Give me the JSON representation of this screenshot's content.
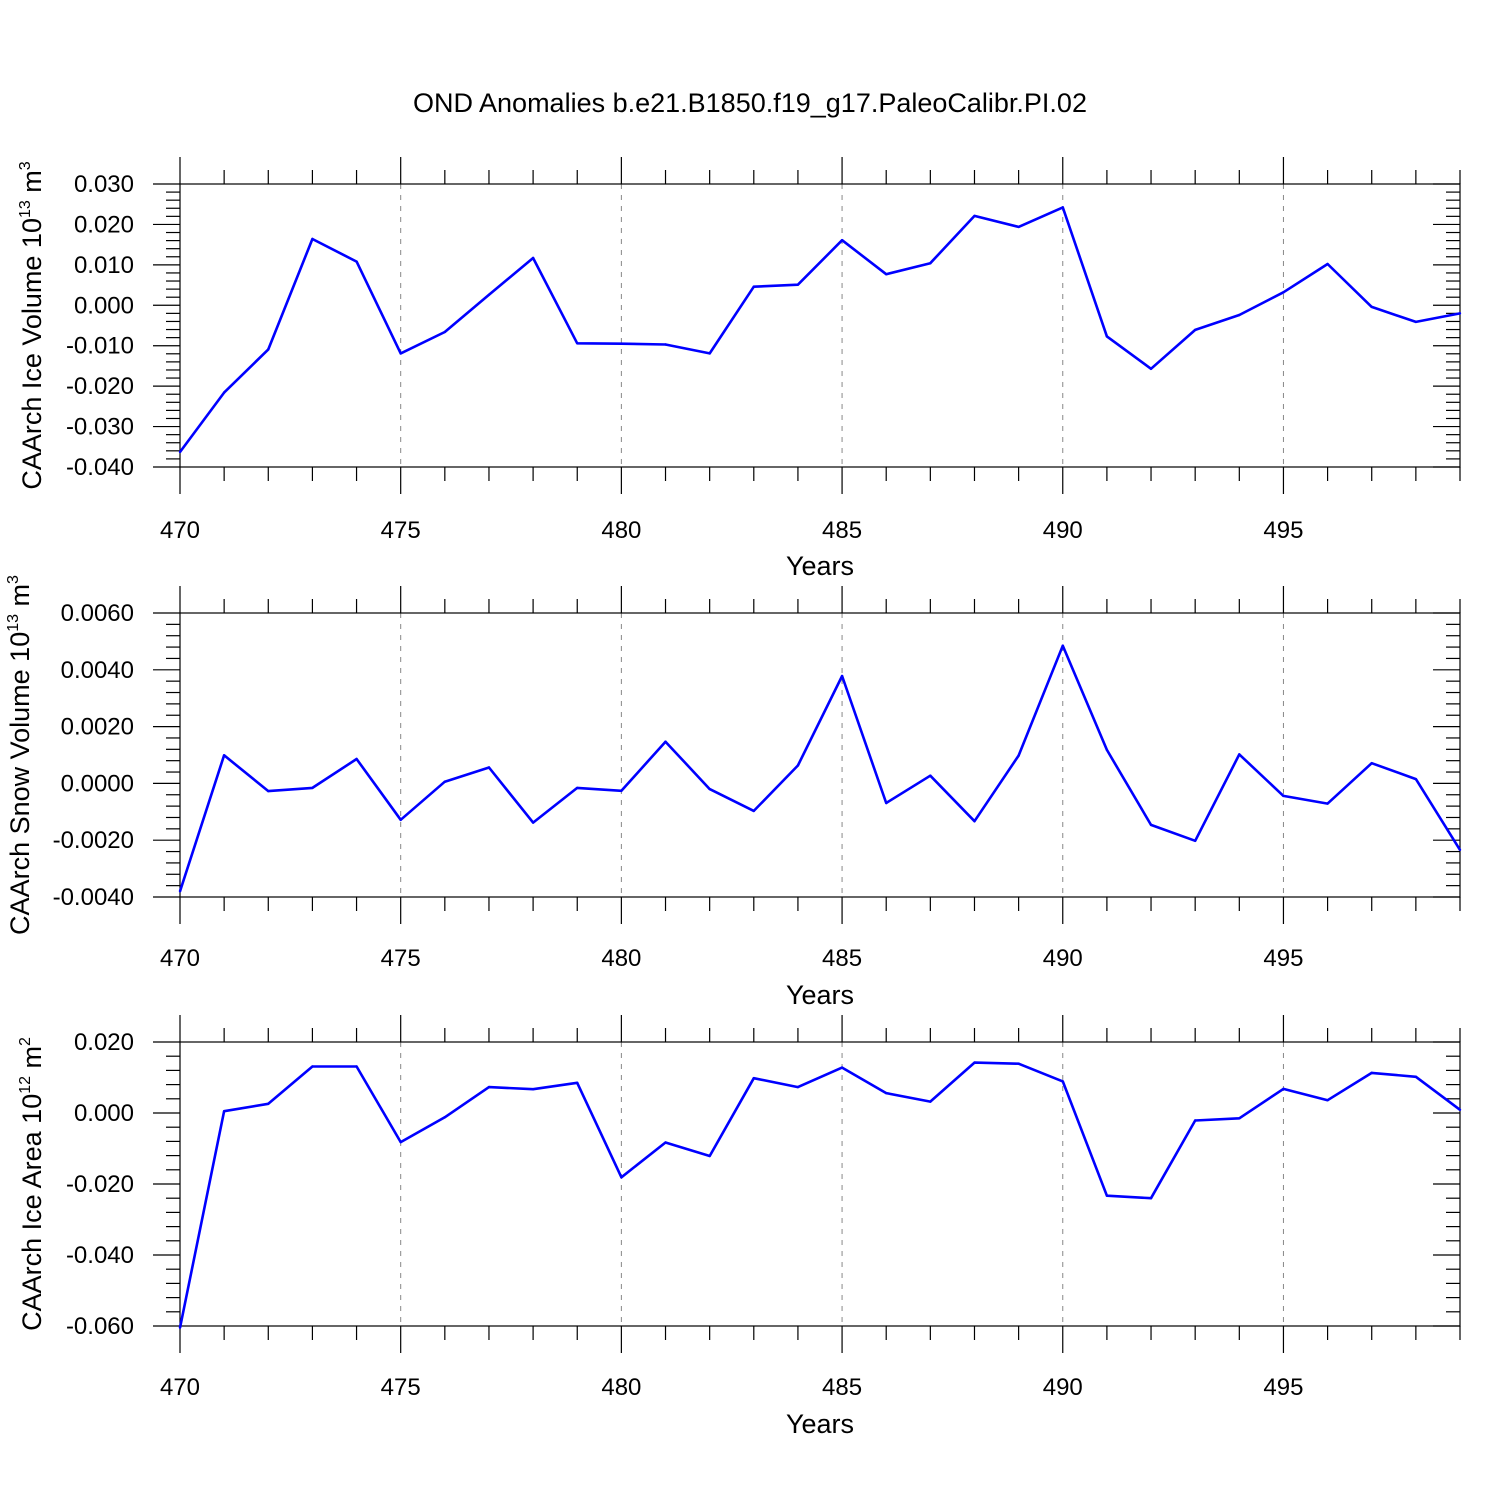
{
  "title": "OND Anomalies b.e21.B1850.f19_g17.PaleoCalibr.PI.02",
  "colors": {
    "line": "#0000ff",
    "axis": "#000000",
    "grid": "#888888"
  },
  "chart_data": [
    {
      "type": "line",
      "xlabel": "Years",
      "ylabel": "CAArch Ice Volume 10",
      "ylabel_exp": "13",
      "ylabel_unit": " m",
      "ylabel_unit_exp": "3",
      "xlim": [
        470,
        499
      ],
      "ylim": [
        -0.04,
        0.03
      ],
      "xticks": [
        470,
        475,
        480,
        485,
        490,
        495
      ],
      "yticks": [
        -0.04,
        -0.03,
        -0.02,
        -0.01,
        0.0,
        0.01,
        0.02,
        0.03
      ],
      "ytick_labels": [
        "-0.040",
        "-0.030",
        "-0.020",
        "-0.010",
        "0.000",
        "0.010",
        "0.020",
        "0.030"
      ],
      "grid": "vertical dashed at major x ticks",
      "x": [
        470,
        471,
        472,
        473,
        474,
        475,
        476,
        477,
        478,
        479,
        480,
        481,
        482,
        483,
        484,
        485,
        486,
        487,
        488,
        489,
        490,
        491,
        492,
        493,
        494,
        495,
        496,
        497,
        498,
        499
      ],
      "values": [
        -0.0363,
        -0.0216,
        -0.0109,
        0.0164,
        0.0108,
        -0.0119,
        -0.0066,
        0.0026,
        0.0117,
        -0.0094,
        -0.0095,
        -0.0097,
        -0.0119,
        0.0046,
        0.0051,
        0.0161,
        0.0077,
        0.0104,
        0.0221,
        0.0194,
        0.0242,
        -0.0077,
        -0.0157,
        -0.0061,
        -0.0024,
        0.0032,
        0.0102,
        -0.0004,
        -0.0041,
        -0.002
      ]
    },
    {
      "type": "line",
      "xlabel": "Years",
      "ylabel": "CAArch Snow Volume 10",
      "ylabel_exp": "13",
      "ylabel_unit": " m",
      "ylabel_unit_exp": "3",
      "xlim": [
        470,
        499
      ],
      "ylim": [
        -0.004,
        0.006
      ],
      "xticks": [
        470,
        475,
        480,
        485,
        490,
        495
      ],
      "yticks": [
        -0.004,
        -0.002,
        0.0,
        0.002,
        0.004,
        0.006
      ],
      "ytick_labels": [
        "-0.0040",
        "-0.0020",
        "0.0000",
        "0.0020",
        "0.0040",
        "0.0060"
      ],
      "grid": "vertical dashed at major x ticks",
      "x": [
        470,
        471,
        472,
        473,
        474,
        475,
        476,
        477,
        478,
        479,
        480,
        481,
        482,
        483,
        484,
        485,
        486,
        487,
        488,
        489,
        490,
        491,
        492,
        493,
        494,
        495,
        496,
        497,
        498,
        499
      ],
      "values": [
        -0.0038,
        0.00099,
        -0.00027,
        -0.00016,
        0.00086,
        -0.00128,
        6e-05,
        0.00056,
        -0.00138,
        -0.00016,
        -0.00026,
        0.00147,
        -0.0002,
        -0.00097,
        0.00063,
        0.00378,
        -0.00069,
        0.00027,
        -0.00133,
        0.00098,
        0.00485,
        0.00118,
        -0.00146,
        -0.00202,
        0.00102,
        -0.00044,
        -0.00071,
        0.00071,
        0.00015,
        -0.00234
      ]
    },
    {
      "type": "line",
      "xlabel": "Years",
      "ylabel": "CAArch Ice Area 10",
      "ylabel_exp": "12",
      "ylabel_unit": " m",
      "ylabel_unit_exp": "2",
      "xlim": [
        470,
        499
      ],
      "ylim": [
        -0.06,
        0.02
      ],
      "xticks": [
        470,
        475,
        480,
        485,
        490,
        495
      ],
      "yticks": [
        -0.06,
        -0.04,
        -0.02,
        0.0,
        0.02
      ],
      "ytick_labels": [
        "-0.060",
        "-0.040",
        "-0.020",
        "0.000",
        "0.020"
      ],
      "grid": "vertical dashed at major x ticks",
      "x": [
        470,
        471,
        472,
        473,
        474,
        475,
        476,
        477,
        478,
        479,
        480,
        481,
        482,
        483,
        484,
        485,
        486,
        487,
        488,
        489,
        490,
        491,
        492,
        493,
        494,
        495,
        496,
        497,
        498,
        499
      ],
      "values": [
        -0.0605,
        0.0005,
        0.0026,
        0.0131,
        0.0131,
        -0.0082,
        -0.0012,
        0.0073,
        0.0067,
        0.0085,
        -0.0181,
        -0.0083,
        -0.0121,
        0.0098,
        0.0073,
        0.0128,
        0.0056,
        0.0032,
        0.0142,
        0.0139,
        0.0089,
        -0.0233,
        -0.024,
        -0.0021,
        -0.0015,
        0.0068,
        0.0036,
        0.0113,
        0.0102,
        0.0009
      ]
    }
  ]
}
